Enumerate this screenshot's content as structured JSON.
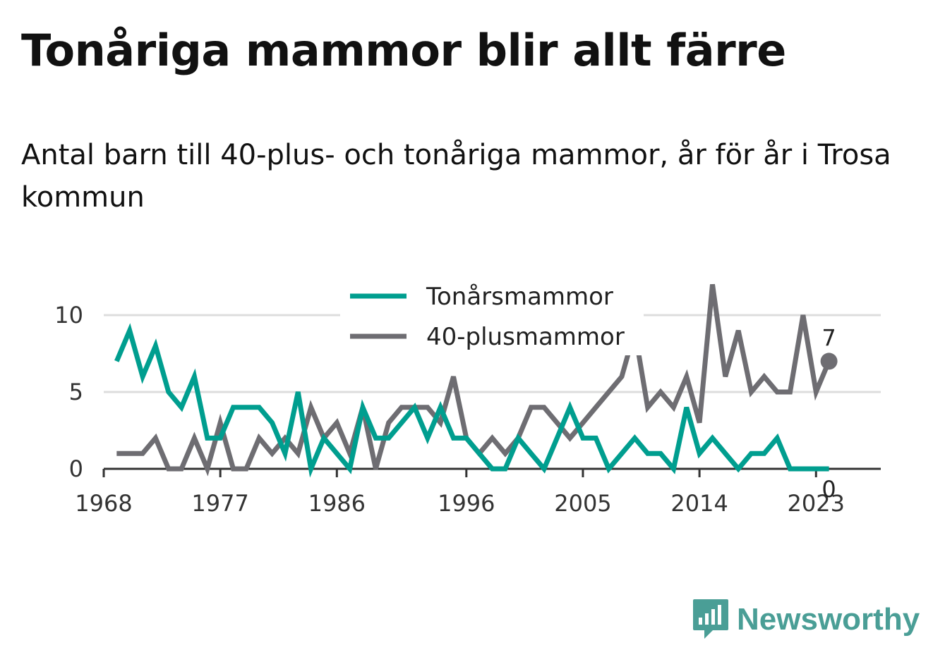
{
  "title": "Tonåriga mammor blir allt färre",
  "subtitle": "Antal barn till 40-plus- och tonåriga mammor, år för år i Trosa kommun",
  "logo": {
    "text": "Newsworthy",
    "icon": "newsworthy-chart-bubble-icon"
  },
  "colors": {
    "teen": "#009e8f",
    "forty": "#6e6d72",
    "grid": "#dddddd",
    "axis": "#333333"
  },
  "chart_data": {
    "type": "line",
    "title": "Tonåriga mammor blir allt färre",
    "subtitle": "Antal barn till 40-plus- och tonåriga mammor, år för år i Trosa kommun",
    "xlabel": "",
    "ylabel": "",
    "x": [
      1969,
      1970,
      1971,
      1972,
      1973,
      1974,
      1975,
      1976,
      1977,
      1978,
      1979,
      1980,
      1981,
      1982,
      1983,
      1984,
      1985,
      1986,
      1987,
      1988,
      1989,
      1990,
      1991,
      1992,
      1993,
      1994,
      1995,
      1996,
      1997,
      1998,
      1999,
      2000,
      2001,
      2002,
      2003,
      2004,
      2005,
      2006,
      2007,
      2008,
      2009,
      2010,
      2011,
      2012,
      2013,
      2014,
      2015,
      2016,
      2017,
      2018,
      2019,
      2020,
      2021,
      2022,
      2023,
      2024
    ],
    "xticks": [
      "1968",
      "1977",
      "1986",
      "1996",
      "2005",
      "2014",
      "2023"
    ],
    "xlim": [
      1968,
      2028
    ],
    "ylim": [
      0,
      12
    ],
    "yticks": [
      "0",
      "5",
      "10"
    ],
    "grid": true,
    "legend_position": "top-center",
    "series": [
      {
        "name": "Tonårsmammor",
        "color": "#009e8f",
        "values": [
          7,
          9,
          6,
          8,
          5,
          4,
          6,
          2,
          2,
          4,
          4,
          4,
          3,
          1,
          5,
          0,
          2,
          1,
          0,
          4,
          2,
          2,
          3,
          4,
          2,
          4,
          2,
          2,
          1,
          0,
          0,
          2,
          1,
          0,
          2,
          4,
          2,
          2,
          0,
          1,
          2,
          1,
          1,
          0,
          4,
          1,
          2,
          1,
          0,
          1,
          1,
          2,
          0,
          0,
          0,
          0
        ],
        "end_label": "0"
      },
      {
        "name": "40-plusmammor",
        "color": "#6e6d72",
        "values": [
          1,
          1,
          1,
          2,
          0,
          0,
          2,
          0,
          3,
          0,
          0,
          2,
          1,
          2,
          1,
          4,
          2,
          3,
          1,
          4,
          0,
          3,
          4,
          4,
          4,
          3,
          6,
          2,
          1,
          2,
          1,
          2,
          4,
          4,
          3,
          2,
          3,
          4,
          5,
          6,
          9,
          4,
          5,
          4,
          6,
          3,
          12,
          6,
          9,
          5,
          6,
          5,
          5,
          10,
          5,
          7
        ],
        "end_label": "7"
      }
    ]
  }
}
